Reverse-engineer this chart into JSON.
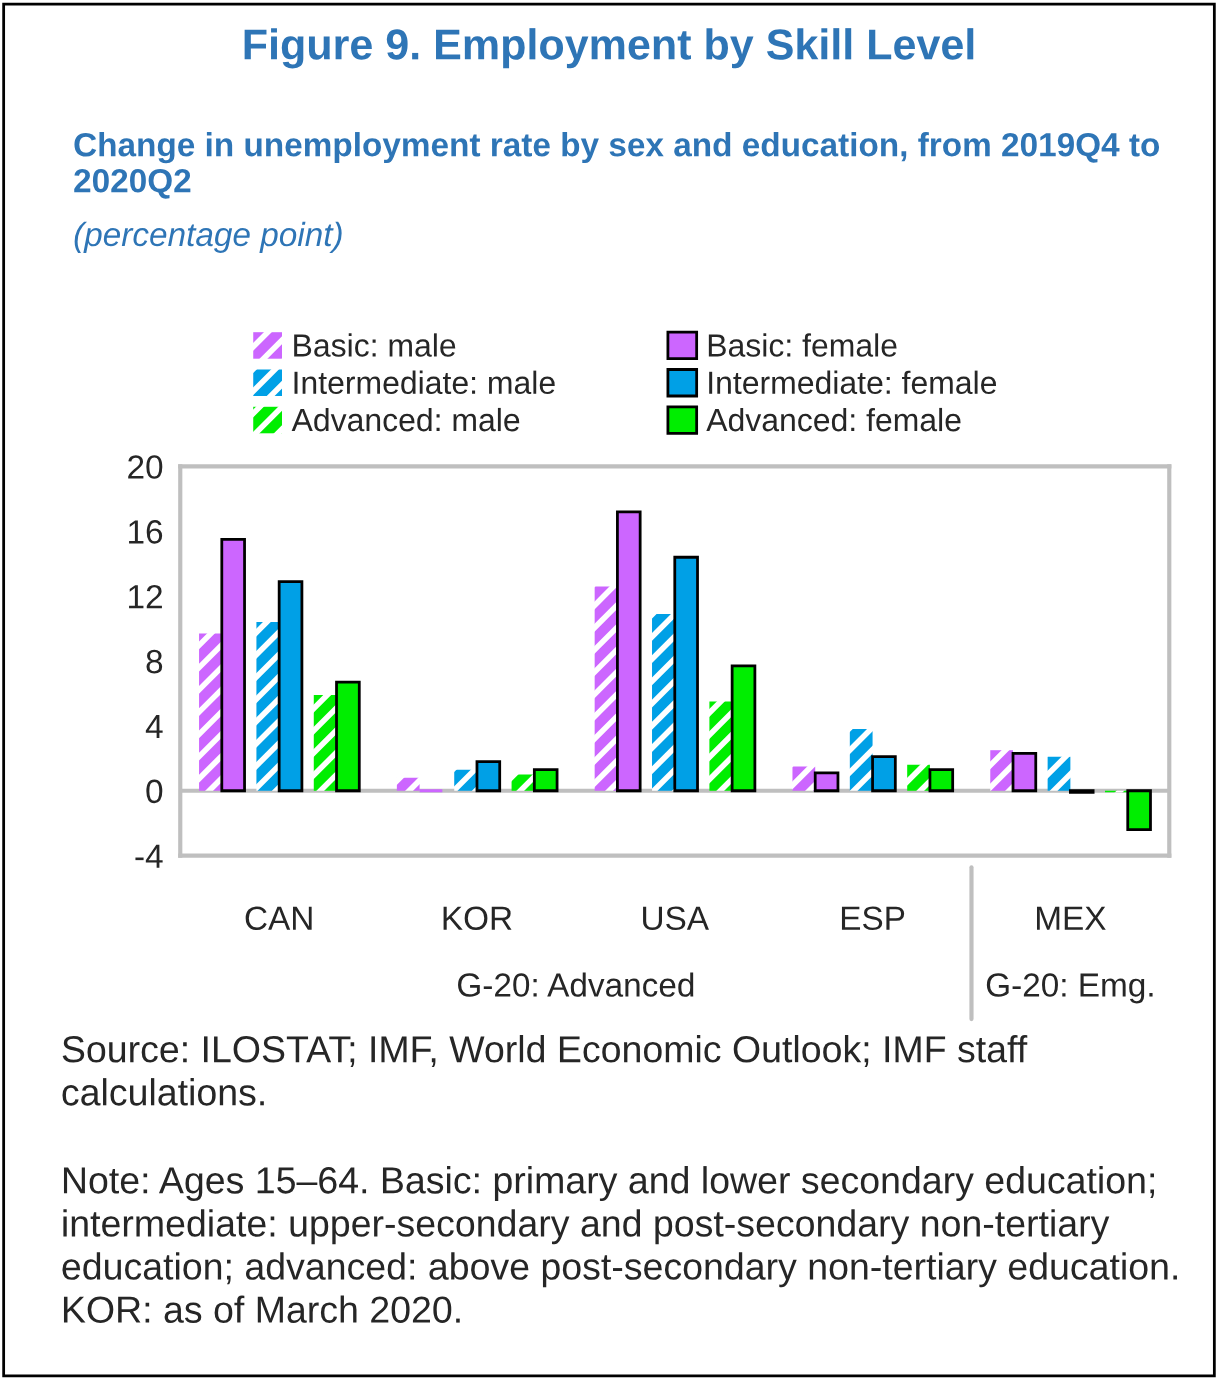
{
  "chart_data": {
    "type": "bar",
    "title": "Figure 9. Employment by Skill Level",
    "subtitle": "Change in unemployment rate by sex and education, from 2019Q4 to 2020Q2",
    "categories": [
      "CAN",
      "KOR",
      "USA",
      "ESP",
      "MEX"
    ],
    "series": [
      {
        "name": "Basic: male",
        "color": "#cc66ff",
        "values": [
          9.7,
          0.8,
          12.6,
          1.5,
          2.5
        ]
      },
      {
        "name": "Basic: female",
        "color": "#cc66ff",
        "values": [
          15.5,
          0.0,
          17.2,
          1.1,
          2.3
        ]
      },
      {
        "name": "Intermediate: male",
        "color": "#00a0e6",
        "values": [
          10.4,
          1.3,
          10.9,
          3.8,
          2.1
        ]
      },
      {
        "name": "Intermediate: female",
        "color": "#00a0e6",
        "values": [
          12.9,
          1.8,
          14.4,
          2.1,
          -0.1
        ]
      },
      {
        "name": "Advanced: male",
        "color": "#00ee00",
        "values": [
          5.9,
          1.0,
          5.5,
          1.6,
          -0.1
        ]
      },
      {
        "name": "Advanced: female",
        "color": "#00ee00",
        "values": [
          6.7,
          1.3,
          7.7,
          1.3,
          -2.4
        ]
      }
    ],
    "ylim": [
      -4,
      20
    ],
    "yticks": [
      {
        "value": -4,
        "label": "-4"
      },
      0,
      4,
      8,
      12,
      16,
      20
    ],
    "ref_lines": [
      {
        "axis": "y",
        "value": 0,
        "color": "#bfbfbf"
      }
    ],
    "legend": "top",
    "grid": false,
    "annotations": [
      "(percentage point)",
      "G-20: Advanced",
      "G-20: Emg.",
      "Source: ILOSTAT; IMF, World Economic Outlook; IMF staff calculations.",
      "Note: Ages 15–64. Basic: primary and lower secondary education; intermediate: upper-secondary and post-secondary non-tertiary education; advanced: above post-secondary non-tertiary education. KOR: as of March 2020."
    ]
  }
}
